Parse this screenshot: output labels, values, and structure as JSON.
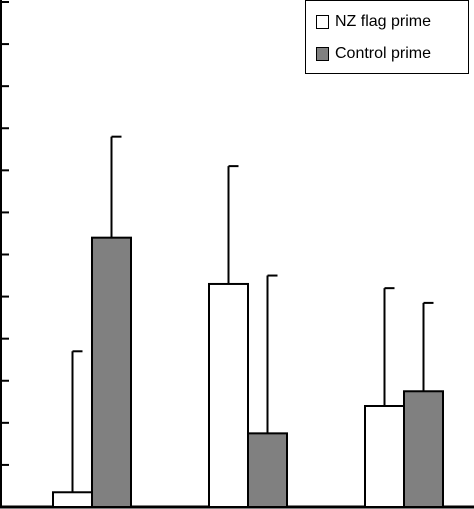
{
  "chart_data": {
    "type": "bar",
    "categories": [
      "",
      "",
      ""
    ],
    "series": [
      {
        "name": "NZ flag prime",
        "color": "#ffffff",
        "values": [
          0.35,
          5.3,
          2.4
        ],
        "error": [
          3.35,
          2.8,
          2.8
        ]
      },
      {
        "name": "Control prime",
        "color": "#808080",
        "values": [
          6.4,
          1.75,
          2.75
        ],
        "error": [
          2.4,
          3.75,
          2.1
        ]
      }
    ],
    "title": "",
    "xlabel": "",
    "ylabel": "",
    "ylim": [
      0,
      12
    ],
    "grid": false,
    "legend_position": "top-right"
  }
}
